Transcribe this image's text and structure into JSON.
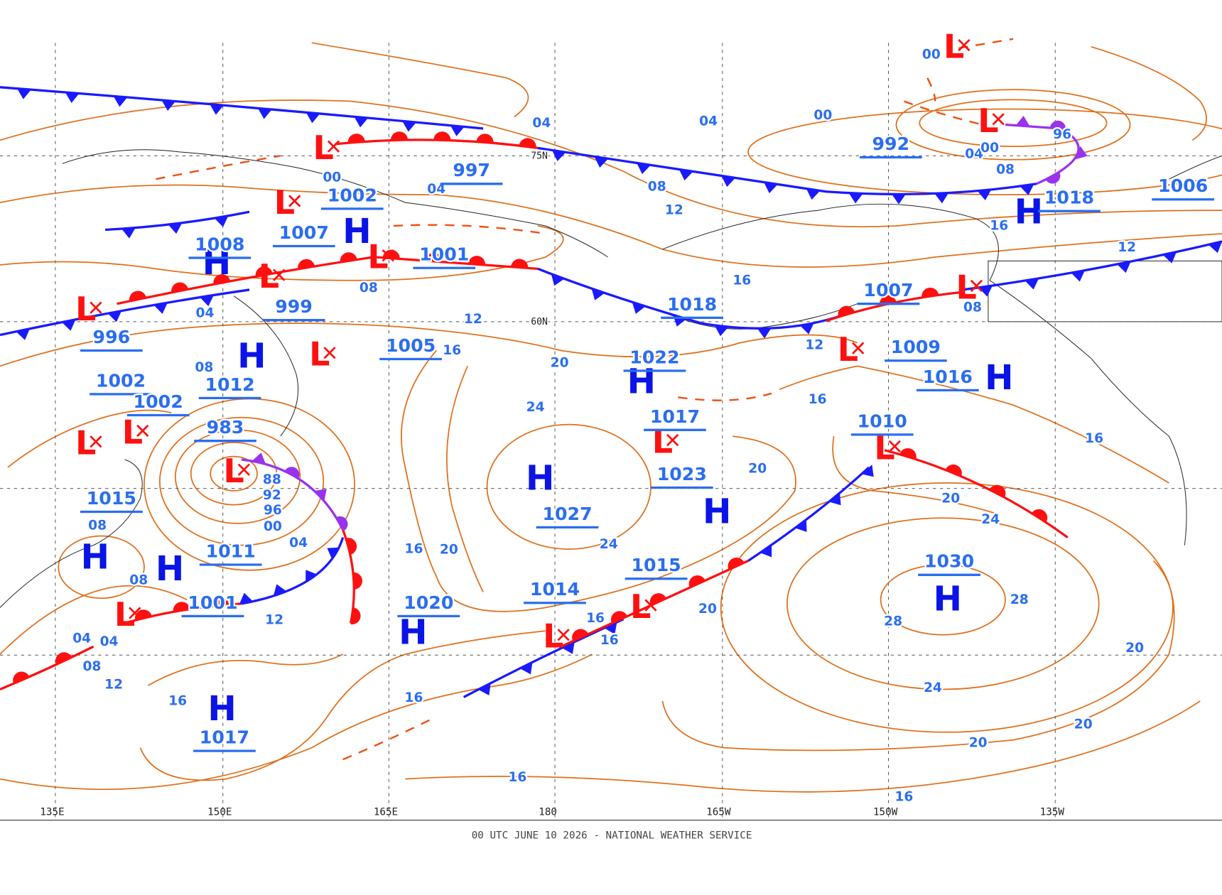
{
  "footer": "00 UTC JUNE 10 2026 - NATIONAL WEATHER SERVICE",
  "longitudes": [
    "135E",
    "150E",
    "165E",
    "180",
    "165W",
    "150W",
    "135W"
  ],
  "latitudes": [
    "75N",
    "60N"
  ],
  "centers": [
    "H",
    "H",
    "H",
    "H",
    "H",
    "H",
    "H",
    "H",
    "H",
    "H",
    "H",
    "H",
    "H",
    "L",
    "L",
    "L",
    "L",
    "L",
    "L",
    "L",
    "L",
    "L",
    "L",
    "L",
    "L",
    "L",
    "L",
    "L",
    "L",
    "L",
    "L"
  ],
  "pressure_labels": [
    "1018",
    "1007",
    "1008",
    "1012",
    "1022",
    "1027",
    "1023",
    "1016",
    "1030",
    "1020",
    "1017",
    "1015",
    "1018",
    "1009",
    "1006",
    "1002",
    "1001",
    "996",
    "983",
    "1001",
    "1014",
    "1015",
    "1017",
    "1007",
    "1010",
    "992",
    "997",
    "999",
    "1005",
    "1011",
    "1002",
    "1002"
  ],
  "isobar_labels": [
    "04",
    "04",
    "04",
    "04",
    "04",
    "04",
    "04",
    "04",
    "08",
    "08",
    "08",
    "08",
    "08",
    "08",
    "08",
    "08",
    "12",
    "12",
    "12",
    "12",
    "12",
    "12",
    "16",
    "16",
    "16",
    "16",
    "16",
    "16",
    "16",
    "16",
    "16",
    "16",
    "16",
    "16",
    "20",
    "20",
    "20",
    "20",
    "20",
    "20",
    "20",
    "20",
    "24",
    "24",
    "24",
    "24",
    "28",
    "28",
    "00",
    "00",
    "00",
    "00",
    "00",
    "96",
    "96",
    "92",
    "88"
  ]
}
